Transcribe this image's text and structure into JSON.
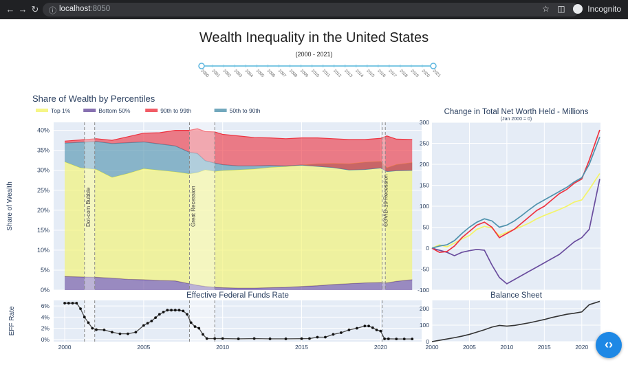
{
  "browser": {
    "url_host": "localhost",
    "url_port": ":8050",
    "profile_label": "Incognito",
    "icons": [
      "back-arrow-icon",
      "forward-arrow-icon",
      "reload-icon",
      "info-icon",
      "star-icon",
      "sidebar-icon",
      "incognito-icon"
    ]
  },
  "page": {
    "title": "Wealth Inequality in the United States",
    "subtitle": "(2000 - 2021)"
  },
  "slider": {
    "marks": [
      "2000",
      "2001",
      "2002",
      "2003",
      "2004",
      "2005",
      "2006",
      "2007",
      "2008",
      "2009",
      "2010",
      "2011",
      "2012",
      "2013",
      "2014",
      "2015",
      "2016",
      "2017",
      "2018",
      "2019",
      "2020",
      "2021"
    ],
    "range": [
      2000,
      2021
    ]
  },
  "colors": {
    "top1": "#f4f469",
    "bottom50": "#6a4d9e",
    "p90_99": "#ee3340",
    "p50_90": "#4f92ad",
    "ffr": "#4a4a4a",
    "balance": "#333333",
    "plot_bg": "#e5ecf6"
  },
  "chart_data": [
    {
      "type": "area",
      "title": "Share of Wealth by Percentiles",
      "ylabel": "Share of Wealth",
      "xlim": [
        1999.3,
        2022.6
      ],
      "ylim": [
        0,
        42
      ],
      "yticks": [
        "0%",
        "5%",
        "10%",
        "15%",
        "20%",
        "25%",
        "30%",
        "35%",
        "40%"
      ],
      "legend": {
        "placement": "top-left",
        "entries": [
          "Top 1%",
          "Bottom 50%",
          "90th to 99th",
          "50th to 90th"
        ]
      },
      "annotations": [
        {
          "label": "Dot-com Bubble",
          "x0": 2001.25,
          "x1": 2001.9
        },
        {
          "label": "Great Recession",
          "x0": 2007.9,
          "x1": 2009.5
        },
        {
          "label": "COVID-19 Recession",
          "x0": 2020.1,
          "x1": 2020.3
        }
      ],
      "x": [
        2000,
        2001,
        2002,
        2003,
        2004,
        2005,
        2006,
        2007,
        2007.9,
        2008.4,
        2008.9,
        2009.5,
        2010,
        2011,
        2012,
        2013,
        2014,
        2015,
        2016,
        2017,
        2018,
        2019,
        2020,
        2020.4,
        2021,
        2022
      ],
      "series": [
        {
          "name": "Bottom 50%",
          "values": [
            3.4,
            3.3,
            3.2,
            3.0,
            2.7,
            2.6,
            2.4,
            2.3,
            1.6,
            1.2,
            0.9,
            0.7,
            0.6,
            0.5,
            0.5,
            0.6,
            0.7,
            0.9,
            1.1,
            1.4,
            1.6,
            1.8,
            1.9,
            1.8,
            2.2,
            2.6
          ]
        },
        {
          "name": "Top 1%",
          "values": [
            28.7,
            27.3,
            27.0,
            25.2,
            26.5,
            27.8,
            27.6,
            27.3,
            27.5,
            28.2,
            29.2,
            29.0,
            29.3,
            29.6,
            29.8,
            30.1,
            30.2,
            30.4,
            30.5,
            30.3,
            30.0,
            30.2,
            30.3,
            28.8,
            29.2,
            29.3
          ]
        },
        {
          "name": "50th to 90th",
          "values": [
            4.7,
            6.4,
            7.0,
            8.5,
            7.7,
            6.7,
            6.6,
            6.5,
            5.4,
            4.8,
            2.3,
            2.1,
            1.5,
            1.0,
            0.8,
            0.5,
            0.2,
            0.0,
            -0.6,
            -1.0,
            -1.5,
            -1.8,
            -1.6,
            -0.9,
            -1.5,
            -1.9
          ]
        },
        {
          "name": "90th to 99th",
          "values": [
            0.5,
            0.6,
            0.7,
            0.8,
            1.5,
            2.2,
            2.8,
            3.9,
            5.5,
            6.2,
            7.3,
            7.8,
            7.6,
            7.5,
            7.1,
            6.9,
            6.8,
            6.8,
            7.1,
            7.2,
            7.6,
            7.5,
            7.4,
            8.9,
            7.9,
            7.7
          ]
        }
      ]
    },
    {
      "type": "line",
      "title": "Change in Total Net Worth Held - Millions",
      "subtitle": "(Jan 2000 = 0)",
      "xlim": [
        2000,
        2022.5
      ],
      "ylim": [
        -100,
        300
      ],
      "yticks": [
        -100,
        -50,
        0,
        50,
        100,
        150,
        200,
        250,
        300
      ],
      "series": [
        {
          "name": "Top 1%",
          "x": [
            2000,
            2001,
            2002,
            2003,
            2004,
            2005,
            2006,
            2007,
            2008,
            2009,
            2010,
            2011,
            2012,
            2013,
            2014,
            2015,
            2016,
            2017,
            2018,
            2019,
            2020,
            2021,
            2022.4
          ],
          "values": [
            0,
            8,
            3,
            12,
            22,
            30,
            45,
            52,
            48,
            30,
            38,
            45,
            52,
            60,
            70,
            78,
            85,
            92,
            100,
            110,
            115,
            140,
            178
          ]
        },
        {
          "name": "Bottom 50%",
          "x": [
            2000,
            2001,
            2002,
            2003,
            2004,
            2005,
            2006,
            2007,
            2008,
            2009,
            2010,
            2011,
            2012,
            2013,
            2014,
            2015,
            2016,
            2017,
            2018,
            2019,
            2020,
            2021,
            2022.4
          ],
          "values": [
            0,
            -5,
            -10,
            -18,
            -10,
            -6,
            -3,
            -5,
            -40,
            -70,
            -85,
            -75,
            -65,
            -55,
            -45,
            -35,
            -25,
            -15,
            0,
            15,
            25,
            45,
            165
          ]
        },
        {
          "name": "90th to 99th",
          "x": [
            2000,
            2001,
            2002,
            2003,
            2004,
            2005,
            2006,
            2007,
            2008,
            2009,
            2010,
            2011,
            2012,
            2013,
            2014,
            2015,
            2016,
            2017,
            2018,
            2019,
            2020,
            2021,
            2022.4
          ],
          "values": [
            0,
            -10,
            -8,
            5,
            25,
            40,
            55,
            62,
            50,
            25,
            35,
            45,
            60,
            75,
            90,
            100,
            115,
            130,
            140,
            155,
            165,
            210,
            282
          ]
        },
        {
          "name": "50th to 90th",
          "x": [
            2000,
            2001,
            2002,
            2003,
            2004,
            2005,
            2006,
            2007,
            2008,
            2009,
            2010,
            2011,
            2012,
            2013,
            2014,
            2015,
            2016,
            2017,
            2018,
            2019,
            2020,
            2021,
            2022.4
          ],
          "values": [
            0,
            5,
            8,
            18,
            35,
            50,
            62,
            70,
            65,
            50,
            55,
            65,
            78,
            92,
            105,
            115,
            125,
            135,
            145,
            158,
            168,
            200,
            265
          ]
        }
      ]
    },
    {
      "type": "line",
      "title": "Effective Federal Funds Rate",
      "ylabel": "EFF Rate",
      "xlim": [
        1999.3,
        2022.6
      ],
      "ylim": [
        -0.4,
        7.0
      ],
      "yticks": [
        "0%",
        "2%",
        "4%",
        "6%"
      ],
      "xticks": [
        2000,
        2005,
        2010,
        2015,
        2020
      ],
      "x": [
        2000,
        2000.25,
        2000.5,
        2000.75,
        2001,
        2001.25,
        2001.5,
        2001.75,
        2002,
        2002.5,
        2003,
        2003.5,
        2004,
        2004.5,
        2005,
        2005.25,
        2005.5,
        2005.75,
        2006,
        2006.25,
        2006.5,
        2006.75,
        2007,
        2007.25,
        2007.5,
        2007.75,
        2008,
        2008.25,
        2008.5,
        2008.75,
        2009,
        2009.5,
        2010,
        2011,
        2012,
        2013,
        2014,
        2015,
        2015.5,
        2016,
        2016.5,
        2017,
        2017.5,
        2018,
        2018.5,
        2019,
        2019.25,
        2019.5,
        2019.75,
        2020,
        2020.25,
        2020.5,
        2021,
        2021.5,
        2022
      ],
      "values": [
        6.5,
        6.5,
        6.5,
        6.5,
        5.5,
        4.0,
        3.0,
        2.0,
        1.75,
        1.7,
        1.3,
        1.0,
        1.0,
        1.3,
        2.5,
        2.9,
        3.3,
        3.9,
        4.5,
        4.9,
        5.25,
        5.25,
        5.25,
        5.25,
        5.1,
        4.5,
        3.0,
        2.3,
        2.0,
        0.9,
        0.15,
        0.15,
        0.15,
        0.1,
        0.15,
        0.1,
        0.1,
        0.13,
        0.15,
        0.4,
        0.4,
        0.9,
        1.2,
        1.7,
        2.0,
        2.4,
        2.4,
        2.1,
        1.7,
        1.5,
        0.1,
        0.1,
        0.08,
        0.08,
        0.08
      ]
    },
    {
      "type": "line",
      "title": "Balance Sheet",
      "xlim": [
        2000,
        2022.5
      ],
      "ylim": [
        0,
        250
      ],
      "yticks": [
        0,
        100,
        200
      ],
      "xticks": [
        2000,
        2005,
        2010,
        2015,
        2020
      ],
      "x": [
        2000,
        2001,
        2002,
        2003,
        2004,
        2005,
        2006,
        2007,
        2008,
        2009,
        2010,
        2011,
        2012,
        2013,
        2014,
        2015,
        2016,
        2017,
        2018,
        2019,
        2020,
        2021,
        2022.4
      ],
      "values": [
        0,
        8,
        16,
        24,
        33,
        44,
        58,
        72,
        88,
        98,
        94,
        98,
        106,
        114,
        124,
        134,
        146,
        156,
        166,
        172,
        180,
        224,
        244
      ]
    }
  ]
}
